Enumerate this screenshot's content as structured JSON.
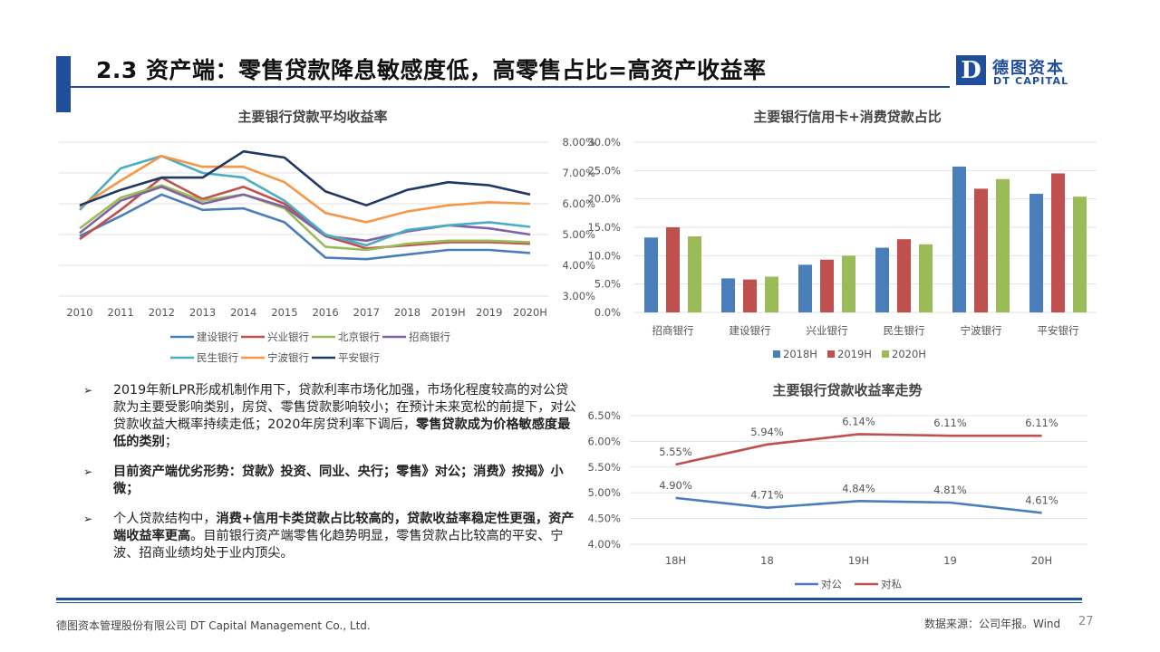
{
  "header": {
    "title": "2.3 资产端：零售贷款降息敏感度低，高零售占比=高资产收益率",
    "logo_mark": "D",
    "logo_cn": "德图资本",
    "logo_en": "DT CAPITAL",
    "brand_color": "#1f4e9b"
  },
  "charts": {
    "line_title": "主要银行贷款平均收益率",
    "bar_title": "主要银行信用卡+消费贷款占比",
    "trend_title": "主要银行贷款收益率走势"
  },
  "chart_data": [
    {
      "type": "line",
      "title": "主要银行贷款平均收益率",
      "x": [
        "2010",
        "2011",
        "2012",
        "2013",
        "2014",
        "2015",
        "2016",
        "2017",
        "2018",
        "2019H",
        "2019",
        "2020H"
      ],
      "yaxis_position": "right",
      "ylim": [
        3.0,
        8.0
      ],
      "yticks": [
        "3.00%",
        "4.00%",
        "5.00%",
        "6.00%",
        "7.00%",
        "8.00%"
      ],
      "grid": true,
      "legend": "bottom",
      "series": [
        {
          "name": "建设银行",
          "color": "#4a7ebb",
          "values": [
            4.95,
            5.6,
            6.3,
            5.8,
            5.85,
            5.4,
            4.25,
            4.2,
            4.35,
            4.5,
            4.5,
            4.4
          ]
        },
        {
          "name": "兴业银行",
          "color": "#c0504d",
          "values": [
            4.85,
            5.8,
            6.85,
            6.15,
            6.55,
            6.0,
            4.95,
            4.55,
            4.65,
            4.75,
            4.75,
            4.7
          ]
        },
        {
          "name": "北京银行",
          "color": "#9bbb59",
          "values": [
            5.2,
            6.2,
            6.6,
            6.1,
            6.3,
            5.85,
            4.6,
            4.5,
            4.7,
            4.8,
            4.8,
            4.75
          ]
        },
        {
          "name": "招商银行",
          "color": "#8064a2",
          "values": [
            5.05,
            6.1,
            6.55,
            6.0,
            6.3,
            5.9,
            4.95,
            4.8,
            5.1,
            5.3,
            5.2,
            5.0
          ]
        },
        {
          "name": "民生银行",
          "color": "#4bacc6",
          "values": [
            5.8,
            7.15,
            7.55,
            7.0,
            6.85,
            6.1,
            5.0,
            4.65,
            5.15,
            5.3,
            5.4,
            5.25
          ]
        },
        {
          "name": "宁波银行",
          "color": "#f79646",
          "values": [
            5.9,
            6.75,
            7.55,
            7.2,
            7.2,
            6.7,
            5.7,
            5.4,
            5.75,
            5.95,
            6.05,
            6.0
          ]
        },
        {
          "name": "平安银行",
          "color": "#1f3864",
          "values": [
            5.95,
            6.45,
            6.85,
            6.85,
            7.7,
            7.5,
            6.4,
            5.95,
            6.45,
            6.7,
            6.6,
            6.3
          ]
        }
      ]
    },
    {
      "type": "bar",
      "title": "主要银行信用卡+消费贷款占比",
      "categories": [
        "招商银行",
        "建设银行",
        "兴业银行",
        "民生银行",
        "宁波银行",
        "平安银行"
      ],
      "ylim": [
        0,
        30
      ],
      "yticks": [
        "0.0%",
        "5.0%",
        "10.0%",
        "15.0%",
        "20.0%",
        "25.0%",
        "30.0%"
      ],
      "grid": true,
      "legend": "bottom",
      "series": [
        {
          "name": "2018H",
          "color": "#4a7ebb",
          "values": [
            13.2,
            6.0,
            8.4,
            11.4,
            25.7,
            20.9
          ]
        },
        {
          "name": "2019H",
          "color": "#c0504d",
          "values": [
            15.0,
            5.8,
            9.3,
            12.9,
            21.8,
            24.5
          ]
        },
        {
          "name": "2020H",
          "color": "#9bbb59",
          "values": [
            13.4,
            6.3,
            10.0,
            12.0,
            23.5,
            20.4
          ]
        }
      ]
    },
    {
      "type": "line",
      "title": "主要银行贷款收益率走势",
      "x": [
        "18H",
        "18",
        "19H",
        "19",
        "20H"
      ],
      "ylim": [
        4.0,
        6.5
      ],
      "yticks": [
        "4.00%",
        "4.50%",
        "5.00%",
        "5.50%",
        "6.00%",
        "6.50%"
      ],
      "grid": true,
      "legend": "bottom",
      "series": [
        {
          "name": "对公",
          "color": "#4a7ebb",
          "values": [
            4.9,
            4.71,
            4.84,
            4.81,
            4.61
          ],
          "labels": [
            "4.90%",
            "4.71%",
            "4.84%",
            "4.81%",
            "4.61%"
          ]
        },
        {
          "name": "对私",
          "color": "#c0504d",
          "values": [
            5.55,
            5.94,
            6.14,
            6.11,
            6.11
          ],
          "labels": [
            "5.55%",
            "5.94%",
            "6.14%",
            "6.11%",
            "6.11%"
          ]
        }
      ]
    }
  ],
  "bullets": [
    {
      "arrow": "➢",
      "parts": [
        {
          "text": "2019年新LPR形成机制作用下，贷款利率市场化加强，市场化程度较高的对公贷款为主要受影响类别，房贷、零售贷款影响较小；在预计未来宽松的前提下，对公贷款收益大概率持续走低；2020年房贷利率下调后，",
          "bold": false
        },
        {
          "text": "零售贷款成为价格敏感度最低的类别",
          "bold": true
        },
        {
          "text": "；",
          "bold": false
        }
      ]
    },
    {
      "arrow": "➢",
      "parts": [
        {
          "text": "目前资产端优劣形势：贷款》投资、同业、央行；零售》对公；消费》按揭》小微；",
          "bold": true
        }
      ]
    },
    {
      "arrow": "➢",
      "parts": [
        {
          "text": "个人贷款结构中，",
          "bold": false
        },
        {
          "text": "消费+信用卡类贷款占比较高的，贷款收益率稳定性更强，资产端收益率更高",
          "bold": true
        },
        {
          "text": "。目前银行资产端零售化趋势明显，零售贷款占比较高的平安、宁波、招商业绩均处于业内顶尖。",
          "bold": false
        }
      ]
    }
  ],
  "footer": {
    "company": "德图资本管理股份有限公司  DT Capital Management Co., Ltd.",
    "source": "数据来源：公司年报。Wind",
    "page_number": "27"
  }
}
